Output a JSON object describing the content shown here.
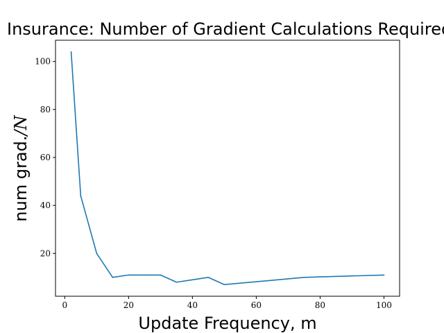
{
  "chart_data": {
    "type": "line",
    "title": "Insurance: Number of Gradient Calculations Required to C",
    "xlabel": "Update Frequency, m",
    "ylabel_prefix": "num grad.",
    "ylabel_slash": "/",
    "ylabel_symbol": "N",
    "xlim": [
      -2.9,
      104.9
    ],
    "ylim": [
      2.15,
      108.85
    ],
    "xticks": [
      0,
      20,
      40,
      60,
      80,
      100
    ],
    "yticks": [
      20,
      40,
      60,
      80,
      100
    ],
    "grid": false,
    "series": [
      {
        "color": "#1f77b4",
        "x": [
          2,
          5,
          10,
          15,
          20,
          25,
          30,
          35,
          40,
          45,
          50,
          75,
          100
        ],
        "y": [
          104,
          44,
          20,
          10,
          11,
          11,
          11,
          8,
          9,
          10,
          7,
          10,
          11
        ]
      }
    ]
  }
}
